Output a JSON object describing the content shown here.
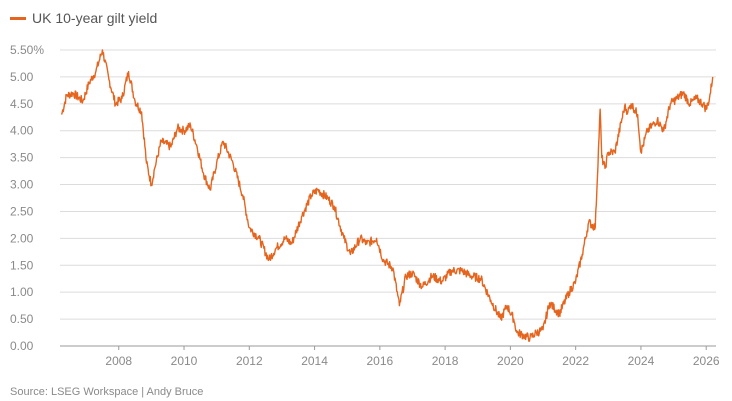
{
  "chart_data": {
    "type": "line",
    "title": "",
    "xlabel": "",
    "ylabel": "",
    "xlim": [
      2006.2,
      2026.3
    ],
    "ylim": [
      0,
      5.5
    ],
    "yticks": [
      0,
      0.5,
      1.0,
      1.5,
      2.0,
      2.5,
      3.0,
      3.5,
      4.0,
      4.5,
      5.0,
      5.5
    ],
    "ytick_labels": [
      "0.00",
      "0.50",
      "1.00",
      "1.50",
      "2.00",
      "2.50",
      "3.00",
      "3.50",
      "4.00",
      "4.50",
      "5.00",
      "5.50%"
    ],
    "xticks": [
      2008,
      2010,
      2012,
      2014,
      2016,
      2018,
      2020,
      2022,
      2024,
      2026
    ],
    "xtick_labels": [
      "2008",
      "2010",
      "2012",
      "2014",
      "2016",
      "2018",
      "2020",
      "2022",
      "2024",
      "2026"
    ],
    "grid": true,
    "legend": "top-left",
    "series": [
      {
        "name": "UK 10-year gilt yield",
        "color": "#e5641e",
        "x": [
          2006.25,
          2006.4,
          2006.6,
          2006.9,
          2007.1,
          2007.3,
          2007.5,
          2007.7,
          2007.9,
          2008.1,
          2008.3,
          2008.5,
          2008.7,
          2008.85,
          2009.0,
          2009.1,
          2009.3,
          2009.6,
          2009.8,
          2010.0,
          2010.2,
          2010.4,
          2010.6,
          2010.8,
          2011.0,
          2011.2,
          2011.5,
          2011.8,
          2012.0,
          2012.3,
          2012.6,
          2012.8,
          2013.1,
          2013.3,
          2013.6,
          2013.9,
          2014.1,
          2014.4,
          2014.6,
          2014.9,
          2015.1,
          2015.4,
          2015.6,
          2015.9,
          2016.1,
          2016.4,
          2016.6,
          2016.8,
          2017.0,
          2017.3,
          2017.6,
          2017.9,
          2018.2,
          2018.5,
          2018.8,
          2019.1,
          2019.4,
          2019.7,
          2019.9,
          2020.1,
          2020.2,
          2020.4,
          2020.6,
          2020.8,
          2021.0,
          2021.2,
          2021.5,
          2021.8,
          2022.0,
          2022.2,
          2022.4,
          2022.6,
          2022.75,
          2022.8,
          2022.9,
          2023.0,
          2023.2,
          2023.5,
          2023.6,
          2023.7,
          2023.9,
          2024.0,
          2024.2,
          2024.5,
          2024.7,
          2024.9,
          2025.1,
          2025.3,
          2025.5,
          2025.7,
          2025.9,
          2026.0,
          2026.1,
          2026.2
        ],
        "y": [
          4.3,
          4.65,
          4.7,
          4.55,
          4.9,
          5.1,
          5.5,
          4.95,
          4.5,
          4.6,
          5.1,
          4.55,
          4.35,
          3.4,
          3.0,
          3.3,
          3.8,
          3.7,
          4.05,
          4.0,
          4.1,
          3.7,
          3.2,
          2.9,
          3.4,
          3.8,
          3.4,
          2.8,
          2.2,
          2.0,
          1.6,
          1.8,
          2.0,
          1.9,
          2.4,
          2.8,
          2.9,
          2.75,
          2.6,
          2.0,
          1.7,
          2.0,
          1.9,
          2.0,
          1.6,
          1.45,
          0.75,
          1.3,
          1.35,
          1.1,
          1.3,
          1.2,
          1.4,
          1.4,
          1.3,
          1.25,
          0.85,
          0.5,
          0.75,
          0.5,
          0.25,
          0.2,
          0.15,
          0.25,
          0.3,
          0.8,
          0.6,
          1.0,
          1.2,
          1.7,
          2.3,
          2.2,
          4.4,
          3.5,
          3.3,
          3.6,
          3.6,
          4.45,
          4.35,
          4.5,
          4.3,
          3.6,
          4.0,
          4.2,
          4.0,
          4.5,
          4.6,
          4.7,
          4.5,
          4.6,
          4.5,
          4.4,
          4.6,
          5.0
        ]
      }
    ]
  },
  "source_text": "Source: LSEG Workspace | Andy Bruce"
}
